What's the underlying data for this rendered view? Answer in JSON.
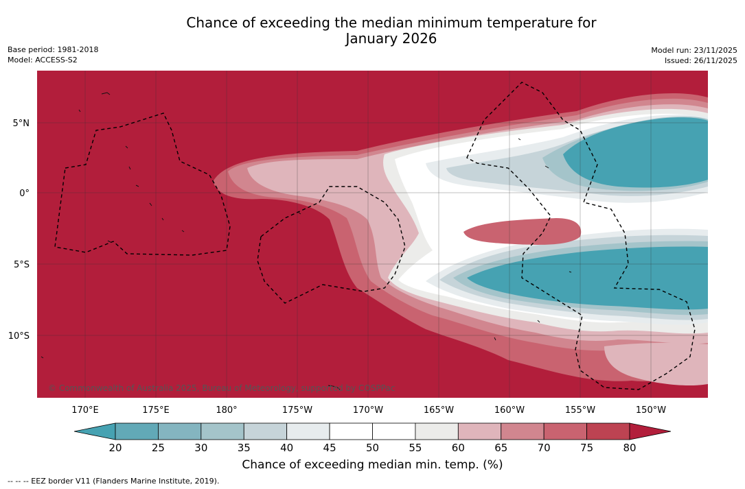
{
  "title": {
    "line1": "Chance of exceeding the median minimum temperature for",
    "line2": "January 2026"
  },
  "meta_left": {
    "base_period": "Base period: 1981-2018",
    "model": "Model: ACCESS-S2"
  },
  "meta_right": {
    "model_run": "Model run: 23/11/2025",
    "issued": "Issued: 26/11/2025"
  },
  "map": {
    "copyright": "© Commonwealth of Australia 2025, Bureau of Meteorology, supported by COSPPac",
    "lat_labels": [
      "5°N",
      "0°",
      "5°S",
      "10°S"
    ],
    "lon_labels": [
      "170°E",
      "175°E",
      "180°",
      "175°W",
      "170°W",
      "165°W",
      "160°W",
      "155°W",
      "150°W"
    ]
  },
  "colorbar": {
    "ticks": [
      "20",
      "25",
      "30",
      "35",
      "40",
      "45",
      "50",
      "55",
      "60",
      "65",
      "70",
      "75",
      "80"
    ],
    "colors": [
      "#62a9b7",
      "#84b5c0",
      "#a4c4ca",
      "#c6d4d9",
      "#e7ecee",
      "#ffffff",
      "#ffffff",
      "#ececea",
      "#dfb5bb",
      "#d1868f",
      "#c96370",
      "#bd4352"
    ],
    "under_color": "#46a2b2",
    "over_color": "#b21e3b",
    "title": "Chance of exceeding median min. temp. (%)"
  },
  "legend_footer": "-- -- -- EEZ border V11 (Flanders Marine Institute, 2019)."
}
